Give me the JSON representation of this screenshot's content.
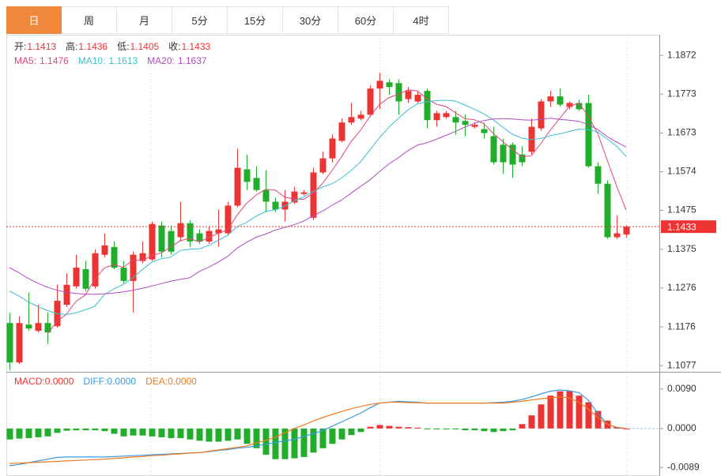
{
  "tabs": [
    "日",
    "周",
    "月",
    "5分",
    "15分",
    "30分",
    "60分",
    "4时"
  ],
  "active_tab": 0,
  "chart_data": [
    {
      "type": "candlestick",
      "ohlc_labels": [
        "开:",
        "高:",
        "低:",
        "收:"
      ],
      "separator": ":",
      "up_color": "#ee3333",
      "down_color": "#1fae2a",
      "open": [
        1.1186,
        1.1085,
        1.1182,
        1.1166,
        1.1186,
        1.1178,
        1.1233,
        1.128,
        1.1324,
        1.128,
        1.1361,
        1.1381,
        1.1328,
        1.1294,
        1.1345,
        1.1349,
        1.1436,
        1.1422,
        1.1406,
        1.1442,
        1.1416,
        1.1395,
        1.1416,
        1.1416,
        1.1487,
        1.158,
        1.1558,
        1.1527,
        1.1497,
        1.1477,
        1.1495,
        1.1517,
        1.1456,
        1.1572,
        1.1608,
        1.1653,
        1.17,
        1.171,
        1.172,
        1.1787,
        1.1803,
        1.1801,
        1.176,
        1.1754,
        1.1781,
        1.1706,
        1.1714,
        1.1714,
        1.1704,
        1.1689,
        1.1683,
        1.1665,
        1.1643,
        1.1643,
        1.1618,
        1.1625,
        1.1685,
        1.1754,
        1.1767,
        1.174,
        1.175,
        1.175,
        1.1588,
        1.1543,
        1.1406,
        1.1413
      ],
      "high": [
        1.1213,
        1.1203,
        1.1264,
        1.1233,
        1.1213,
        1.1284,
        1.1314,
        1.1361,
        1.1345,
        1.1375,
        1.1416,
        1.1395,
        1.1345,
        1.1369,
        1.1395,
        1.1446,
        1.1446,
        1.1436,
        1.1497,
        1.145,
        1.1426,
        1.1434,
        1.1477,
        1.1497,
        1.1633,
        1.1618,
        1.1588,
        1.1578,
        1.1507,
        1.1527,
        1.1535,
        1.1527,
        1.1584,
        1.1625,
        1.1669,
        1.171,
        1.175,
        1.173,
        1.1795,
        1.1827,
        1.1811,
        1.1811,
        1.1791,
        1.1779,
        1.1787,
        1.173,
        1.173,
        1.173,
        1.172,
        1.17,
        1.17,
        1.1689,
        1.1659,
        1.1649,
        1.1639,
        1.171,
        1.176,
        1.1781,
        1.1787,
        1.1754,
        1.1758,
        1.1771,
        1.1598,
        1.1552,
        1.1462,
        1.1436
      ],
      "low": [
        1.1065,
        1.1081,
        1.1166,
        1.1162,
        1.1132,
        1.1174,
        1.1227,
        1.1274,
        1.1268,
        1.1274,
        1.1355,
        1.1324,
        1.1288,
        1.1213,
        1.1339,
        1.1345,
        1.1355,
        1.1361,
        1.1395,
        1.1381,
        1.1389,
        1.1389,
        1.1381,
        1.141,
        1.1483,
        1.1527,
        1.1523,
        1.147,
        1.147,
        1.1446,
        1.1491,
        1.1513,
        1.145,
        1.1568,
        1.1598,
        1.1649,
        1.1694,
        1.1706,
        1.1714,
        1.1734,
        1.1771,
        1.172,
        1.175,
        1.175,
        1.1685,
        1.1689,
        1.171,
        1.1669,
        1.1665,
        1.1685,
        1.1659,
        1.1592,
        1.1568,
        1.1558,
        1.1588,
        1.1618,
        1.1679,
        1.174,
        1.174,
        1.1734,
        1.173,
        1.1584,
        1.1517,
        1.1402,
        1.1402,
        1.1405
      ],
      "close": [
        1.1085,
        1.1186,
        1.1172,
        1.1186,
        1.1162,
        1.1243,
        1.1284,
        1.1328,
        1.1274,
        1.1365,
        1.1385,
        1.1328,
        1.1294,
        1.1361,
        1.1365,
        1.144,
        1.1369,
        1.1369,
        1.1442,
        1.1395,
        1.1395,
        1.1422,
        1.1426,
        1.1487,
        1.1584,
        1.1548,
        1.1527,
        1.1497,
        1.1477,
        1.1497,
        1.1523,
        1.1521,
        1.1572,
        1.1608,
        1.1659,
        1.17,
        1.1714,
        1.172,
        1.1787,
        1.1807,
        1.1791,
        1.1754,
        1.1781,
        1.1771,
        1.1706,
        1.1724,
        1.1724,
        1.17,
        1.1694,
        1.1694,
        1.1673,
        1.1598,
        1.1598,
        1.1592,
        1.1598,
        1.1689,
        1.1754,
        1.1767,
        1.1746,
        1.175,
        1.1734,
        1.1588,
        1.1543,
        1.1406,
        1.1416,
        1.1433
      ],
      "series": [
        {
          "name": "MA5",
          "color": "#e0467c",
          "values": [
            null,
            null,
            null,
            null,
            1.1158,
            1.119,
            1.1209,
            1.1241,
            1.1258,
            1.1299,
            1.1327,
            1.1336,
            1.1329,
            1.1347,
            1.1347,
            1.1358,
            1.1366,
            1.1381,
            1.1397,
            1.1403,
            1.1394,
            1.1405,
            1.1416,
            1.1425,
            1.1463,
            1.1493,
            1.1514,
            1.1529,
            1.1527,
            1.1509,
            1.1504,
            1.1503,
            1.1518,
            1.1544,
            1.1577,
            1.1612,
            1.1651,
            1.168,
            1.1716,
            1.1746,
            1.1764,
            1.1772,
            1.1784,
            1.1781,
            1.1761,
            1.1747,
            1.1741,
            1.1725,
            1.171,
            1.1707,
            1.1697,
            1.1672,
            1.1651,
            1.1631,
            1.1612,
            1.1615,
            1.1646,
            1.168,
            1.1711,
            1.1741,
            1.175,
            1.1717,
            1.1672,
            1.1604,
            1.1537,
            1.1476
          ]
        },
        {
          "name": "MA10",
          "color": "#3cbfcf",
          "values": [
            1.1268,
            1.1255,
            1.124,
            1.1228,
            1.1218,
            1.121,
            1.1208,
            1.1212,
            1.122,
            1.1229,
            1.1259,
            1.1273,
            1.1285,
            1.1302,
            1.1323,
            1.1342,
            1.1351,
            1.1355,
            1.1372,
            1.1375,
            1.1376,
            1.1385,
            1.1398,
            1.1411,
            1.1433,
            1.1444,
            1.146,
            1.1472,
            1.1476,
            1.1486,
            1.1499,
            1.1509,
            1.1523,
            1.1535,
            1.1543,
            1.1558,
            1.1577,
            1.1599,
            1.163,
            1.1661,
            1.1688,
            1.1711,
            1.1732,
            1.1748,
            1.1753,
            1.1756,
            1.1757,
            1.1755,
            1.1745,
            1.1734,
            1.1722,
            1.1707,
            1.1688,
            1.167,
            1.166,
            1.1656,
            1.1659,
            1.1666,
            1.1671,
            1.1677,
            1.1683,
            1.1682,
            1.1676,
            1.1658,
            1.1639,
            1.1613
          ]
        },
        {
          "name": "MA20",
          "color": "#b04cc0",
          "values": [
            1.1328,
            1.1315,
            1.13,
            1.1288,
            1.1278,
            1.127,
            1.1265,
            1.1262,
            1.126,
            1.126,
            1.1261,
            1.1263,
            1.1266,
            1.127,
            1.1275,
            1.1281,
            1.1287,
            1.1293,
            1.1298,
            1.1302,
            1.1318,
            1.1329,
            1.1342,
            1.1357,
            1.1378,
            1.1393,
            1.1406,
            1.1414,
            1.1424,
            1.1431,
            1.1438,
            1.1447,
            1.1461,
            1.1473,
            1.1488,
            1.1501,
            1.1519,
            1.1536,
            1.1553,
            1.1574,
            1.1594,
            1.161,
            1.1628,
            1.1642,
            1.1648,
            1.1657,
            1.1667,
            1.1677,
            1.1688,
            1.1698,
            1.1705,
            1.1709,
            1.171,
            1.1709,
            1.1707,
            1.1706,
            1.1708,
            1.1711,
            1.1708,
            1.1706,
            1.1703,
            1.1695,
            1.1682,
            1.1664,
            1.165,
            1.1637
          ]
        }
      ],
      "ylim": [
        1.1061,
        1.1925
      ],
      "yticks": [
        1.1872,
        1.1773,
        1.1673,
        1.1574,
        1.1475,
        1.1375,
        1.1276,
        1.1176,
        1.1077
      ]
    },
    {
      "type": "macd",
      "separator": ":",
      "up_color": "#ee3333",
      "down_color": "#1fae2a",
      "series": [
        {
          "name": "MACD",
          "color": "#ee3333",
          "values": [
            -0.0025,
            -0.0023,
            -0.0022,
            -0.002,
            -0.0018,
            -0.001,
            -0.0005,
            -0.0004,
            -0.0004,
            -0.0004,
            -0.0006,
            -0.0012,
            -0.0018,
            -0.0016,
            -0.0016,
            -0.0018,
            -0.002,
            -0.0022,
            -0.0022,
            -0.0025,
            -0.0028,
            -0.003,
            -0.003,
            -0.0028,
            -0.0025,
            -0.0035,
            -0.0045,
            -0.006,
            -0.007,
            -0.007,
            -0.0068,
            -0.0065,
            -0.0055,
            -0.0045,
            -0.0035,
            -0.0025,
            -0.0015,
            -0.0008,
            0.0004,
            0.0008,
            0.0006,
            0.0004,
            0.0003,
            0.0002,
            -0.0002,
            -0.0002,
            -0.0002,
            -0.0002,
            -0.0004,
            -0.0004,
            -0.0006,
            -0.0008,
            -0.0006,
            -0.0004,
            0.001,
            0.003,
            0.0055,
            0.0075,
            0.0085,
            0.0085,
            0.0075,
            0.006,
            0.004,
            0.0018,
            0.0003,
            0
          ],
          "value_labels": [
            null,
            null,
            null,
            null,
            null,
            null,
            null,
            null,
            null,
            null,
            null,
            null,
            null,
            null,
            null,
            null,
            null,
            null,
            null,
            null,
            null,
            null,
            null,
            null,
            null,
            null,
            null,
            null,
            null,
            null,
            null,
            null,
            null,
            null,
            null,
            null,
            null,
            null,
            null,
            null,
            null,
            null,
            null,
            null,
            null,
            null,
            null,
            null,
            null,
            null,
            null,
            null,
            null,
            null,
            null,
            null,
            null,
            null,
            null,
            null,
            null,
            null,
            null,
            null,
            null,
            "0.0000"
          ]
        },
        {
          "name": "DIFF",
          "color": "#3a9ae0",
          "values": [
            -0.0085,
            -0.0082,
            -0.0078,
            -0.0074,
            -0.007,
            -0.0066,
            -0.0065,
            -0.0065,
            -0.0065,
            -0.0065,
            -0.0065,
            -0.0064,
            -0.0063,
            -0.0062,
            -0.0061,
            -0.006,
            -0.0059,
            -0.0058,
            -0.0057,
            -0.0056,
            -0.0055,
            -0.0053,
            -0.005,
            -0.0048,
            -0.0045,
            -0.0043,
            -0.004,
            -0.0036,
            -0.0032,
            -0.0028,
            -0.0025,
            -0.0018,
            -0.0012,
            -0.0005,
            0.0005,
            0.0015,
            0.0025,
            0.0035,
            0.0047,
            0.0058,
            0.006,
            0.0062,
            0.0061,
            0.006,
            0.0058,
            0.0058,
            0.0058,
            0.0058,
            0.0058,
            0.0058,
            0.0058,
            0.0059,
            0.006,
            0.0062,
            0.0066,
            0.0072,
            0.0079,
            0.0085,
            0.0088,
            0.0086,
            0.0082,
            0.0065,
            0.0035,
            0.001,
            0.0002,
            0
          ],
          "value_labels": [
            null,
            null,
            null,
            null,
            null,
            null,
            null,
            null,
            null,
            null,
            null,
            null,
            null,
            null,
            null,
            null,
            null,
            null,
            null,
            null,
            null,
            null,
            null,
            null,
            null,
            null,
            null,
            null,
            null,
            null,
            null,
            null,
            null,
            null,
            null,
            null,
            null,
            null,
            null,
            null,
            null,
            null,
            null,
            null,
            null,
            null,
            null,
            null,
            null,
            null,
            null,
            null,
            null,
            null,
            null,
            null,
            null,
            null,
            null,
            null,
            null,
            null,
            null,
            null,
            null,
            "0.0000"
          ]
        },
        {
          "name": "DEA",
          "color": "#f07a20",
          "values": [
            -0.008,
            -0.0079,
            -0.0078,
            -0.0077,
            -0.0076,
            -0.0075,
            -0.0074,
            -0.0073,
            -0.0072,
            -0.0071,
            -0.007,
            -0.0068,
            -0.0067,
            -0.0065,
            -0.0064,
            -0.0062,
            -0.0061,
            -0.0059,
            -0.0058,
            -0.0056,
            -0.0055,
            -0.0052,
            -0.0049,
            -0.0046,
            -0.0043,
            -0.004,
            -0.0033,
            -0.0027,
            -0.002,
            -0.001,
            0,
            0.0008,
            0.0017,
            0.0025,
            0.0032,
            0.0039,
            0.0045,
            0.005,
            0.0055,
            0.0058,
            0.006,
            0.006,
            0.0059,
            0.0059,
            0.0058,
            0.0058,
            0.0058,
            0.0058,
            0.0058,
            0.0058,
            0.0058,
            0.0058,
            0.0058,
            0.006,
            0.0062,
            0.0065,
            0.0068,
            0.007,
            0.0072,
            0.007,
            0.006,
            0.0045,
            0.0025,
            0.001,
            0.0003,
            0
          ],
          "value_labels": [
            null,
            null,
            null,
            null,
            null,
            null,
            null,
            null,
            null,
            null,
            null,
            null,
            null,
            null,
            null,
            null,
            null,
            null,
            null,
            null,
            null,
            null,
            null,
            null,
            null,
            null,
            null,
            null,
            null,
            null,
            null,
            null,
            null,
            null,
            null,
            null,
            null,
            null,
            null,
            null,
            null,
            null,
            null,
            null,
            null,
            null,
            null,
            null,
            null,
            null,
            null,
            null,
            null,
            null,
            null,
            null,
            null,
            null,
            null,
            null,
            null,
            null,
            null,
            null,
            null,
            "0.0000"
          ]
        }
      ],
      "ylim": [
        -0.0103,
        0.0124
      ],
      "yticks": [
        {
          "value": 0.009,
          "label": "0.0090"
        },
        {
          "value": 0,
          "label": "0.0000"
        },
        {
          "value": -0.0089,
          "label": "-0.0089"
        }
      ]
    }
  ]
}
